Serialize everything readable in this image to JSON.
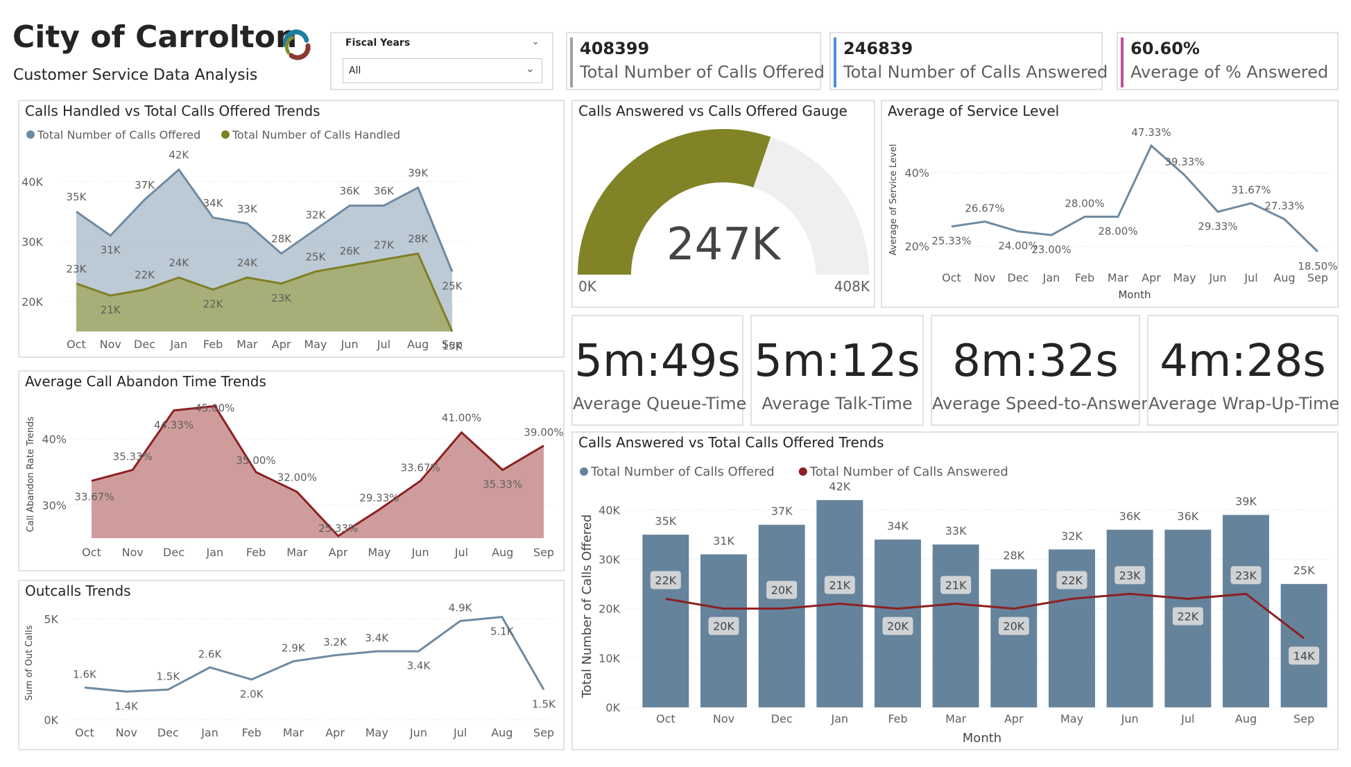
{
  "header": {
    "title": "City of Carrolton",
    "subtitle": "Customer Service Data Analysis",
    "logo_colors": [
      "#1d7fa0",
      "#8b3a2f",
      "#7e8f34"
    ]
  },
  "slicer": {
    "label": "Fiscal Years",
    "value": "All"
  },
  "kpis": [
    {
      "value": "408399",
      "label": "Total Number of Calls Offered",
      "color": "#a0a0a0"
    },
    {
      "value": "246839",
      "label": "Total Number of Calls Answered",
      "color": "#4a90d9"
    },
    {
      "value": "60.60%",
      "label": "Average of % Answered",
      "color": "#c0509a"
    }
  ],
  "time_cards": [
    {
      "value": "5m:49s",
      "label": "Average Queue-Time"
    },
    {
      "value": "5m:12s",
      "label": "Average Talk-Time"
    },
    {
      "value": "8m:32s",
      "label": "Average Speed-to-Answer"
    },
    {
      "value": "4m:28s",
      "label": "Average Wrap-Up-Time"
    }
  ],
  "colors": {
    "offered": "#6f8aa0",
    "offered_fill": "#b8c7d4",
    "handled": "#7f7f24",
    "handled_fill": "#a4ab6e",
    "abandon": "#8b2020",
    "abandon_fill": "#cf9c9c",
    "bar": "#66839c",
    "answered_line": "#8b2020",
    "gauge": "#818326",
    "gauge_bg": "#efefef"
  },
  "chart_data": [
    {
      "id": "handled-vs-offered",
      "type": "area",
      "title": "Calls Handled vs Total Calls Offered Trends",
      "categories": [
        "Oct",
        "Nov",
        "Dec",
        "Jan",
        "Feb",
        "Mar",
        "Apr",
        "May",
        "Jun",
        "Jul",
        "Aug",
        "Sep"
      ],
      "ylim": [
        15000,
        43000
      ],
      "yticks": [
        20000,
        30000,
        40000
      ],
      "ytick_labels": [
        "20K",
        "30K",
        "40K"
      ],
      "legend_position": "top-left",
      "series": [
        {
          "name": "Total Number of Calls Offered",
          "values": [
            35000,
            31000,
            37000,
            42000,
            34000,
            33000,
            28000,
            32000,
            36000,
            36000,
            39000,
            25000
          ],
          "labels": [
            "35K",
            "31K",
            "37K",
            "42K",
            "34K",
            "33K",
            "28K",
            "32K",
            "36K",
            "36K",
            "39K",
            "25K"
          ]
        },
        {
          "name": "Total Number of Calls Handled",
          "values": [
            23000,
            21000,
            22000,
            24000,
            22000,
            24000,
            23000,
            25000,
            26000,
            27000,
            28000,
            15000
          ],
          "labels": [
            "23K",
            "21K",
            "22K",
            "24K",
            "22K",
            "24K",
            "23K",
            "25K",
            "26K",
            "27K",
            "28K",
            "15K"
          ]
        }
      ]
    },
    {
      "id": "gauge",
      "type": "gauge",
      "title": "Calls Answered vs Calls Offered Gauge",
      "value": 247000,
      "value_label": "247K",
      "min": 0,
      "max": 408000,
      "min_label": "0K",
      "max_label": "408K"
    },
    {
      "id": "service-level",
      "type": "line",
      "title": "Average of Service Level",
      "categories": [
        "Oct",
        "Nov",
        "Dec",
        "Jan",
        "Feb",
        "Mar",
        "Apr",
        "May",
        "Jun",
        "Jul",
        "Aug",
        "Sep"
      ],
      "values": [
        25.33,
        26.67,
        24.0,
        23.0,
        28.0,
        28.0,
        47.33,
        39.33,
        29.33,
        31.67,
        27.33,
        18.5
      ],
      "labels": [
        "25.33%",
        "26.67%",
        "24.00%",
        "23.00%",
        "28.00%",
        "28.00%",
        "47.33%",
        "39.33%",
        "29.33%",
        "31.67%",
        "27.33%",
        "18.50%"
      ],
      "xlabel": "Month",
      "ylabel": "Average of Service Level",
      "ylim": [
        16,
        50
      ],
      "yticks": [
        20,
        40
      ],
      "ytick_labels": [
        "20%",
        "40%"
      ]
    },
    {
      "id": "abandon",
      "type": "area",
      "title": "Average Call Abandon Time Trends",
      "categories": [
        "Oct",
        "Nov",
        "Dec",
        "Jan",
        "Feb",
        "Mar",
        "Apr",
        "May",
        "Jun",
        "Jul",
        "Aug",
        "Sep"
      ],
      "values": [
        33.67,
        35.33,
        44.33,
        45.0,
        35.0,
        32.0,
        25.33,
        29.33,
        33.67,
        41.0,
        35.33,
        39.0
      ],
      "labels": [
        "33.67%",
        "35.33%",
        "44.33%",
        "45.00%",
        "35.00%",
        "32.00%",
        "25.33%",
        "29.33%",
        "33.67%",
        "41.00%",
        "35.33%",
        "39.00%"
      ],
      "ylabel": "Call Abandon Rate Trends",
      "ylim": [
        25,
        46
      ],
      "yticks": [
        30,
        40
      ],
      "ytick_labels": [
        "30%",
        "40%"
      ]
    },
    {
      "id": "outcalls",
      "type": "line",
      "title": "Outcalls Trends",
      "categories": [
        "Oct",
        "Nov",
        "Dec",
        "Jan",
        "Feb",
        "Mar",
        "Apr",
        "May",
        "Jun",
        "Jul",
        "Aug",
        "Sep"
      ],
      "values": [
        1600,
        1400,
        1500,
        2600,
        2000,
        2900,
        3200,
        3400,
        3400,
        4900,
        5100,
        1500
      ],
      "labels": [
        "1.6K",
        "1.4K",
        "1.5K",
        "2.6K",
        "2.0K",
        "2.9K",
        "3.2K",
        "3.4K",
        "3.4K",
        "4.9K",
        "5.1K",
        "1.5K"
      ],
      "ylabel": "Sum of Out Calls",
      "ylim": [
        0,
        5500
      ],
      "yticks": [
        0,
        5000
      ],
      "ytick_labels": [
        "0K",
        "5K"
      ]
    },
    {
      "id": "answered-vs-offered",
      "type": "bar",
      "title": "Calls Answered vs Total Calls Offered Trends",
      "categories": [
        "Oct",
        "Nov",
        "Dec",
        "Jan",
        "Feb",
        "Mar",
        "Apr",
        "May",
        "Jun",
        "Jul",
        "Aug",
        "Sep"
      ],
      "xlabel": "Month",
      "ylabel": "Total Number of Calls Offered",
      "ylim": [
        0,
        43000
      ],
      "yticks": [
        0,
        10000,
        20000,
        30000,
        40000
      ],
      "ytick_labels": [
        "0K",
        "10K",
        "20K",
        "30K",
        "40K"
      ],
      "legend_position": "top-left",
      "series": [
        {
          "name": "Total Number of Calls Offered",
          "values": [
            35000,
            31000,
            37000,
            42000,
            34000,
            33000,
            28000,
            32000,
            36000,
            36000,
            39000,
            25000
          ],
          "labels": [
            "35K",
            "31K",
            "37K",
            "42K",
            "34K",
            "33K",
            "28K",
            "32K",
            "36K",
            "36K",
            "39K",
            "25K"
          ]
        },
        {
          "name": "Total Number of Calls Answered",
          "values": [
            22000,
            20000,
            20000,
            21000,
            20000,
            21000,
            20000,
            22000,
            23000,
            22000,
            23000,
            14000
          ],
          "labels": [
            "22K",
            "20K",
            "20K",
            "21K",
            "20K",
            "21K",
            "20K",
            "22K",
            "23K",
            "22K",
            "23K",
            "14K"
          ]
        }
      ]
    }
  ]
}
